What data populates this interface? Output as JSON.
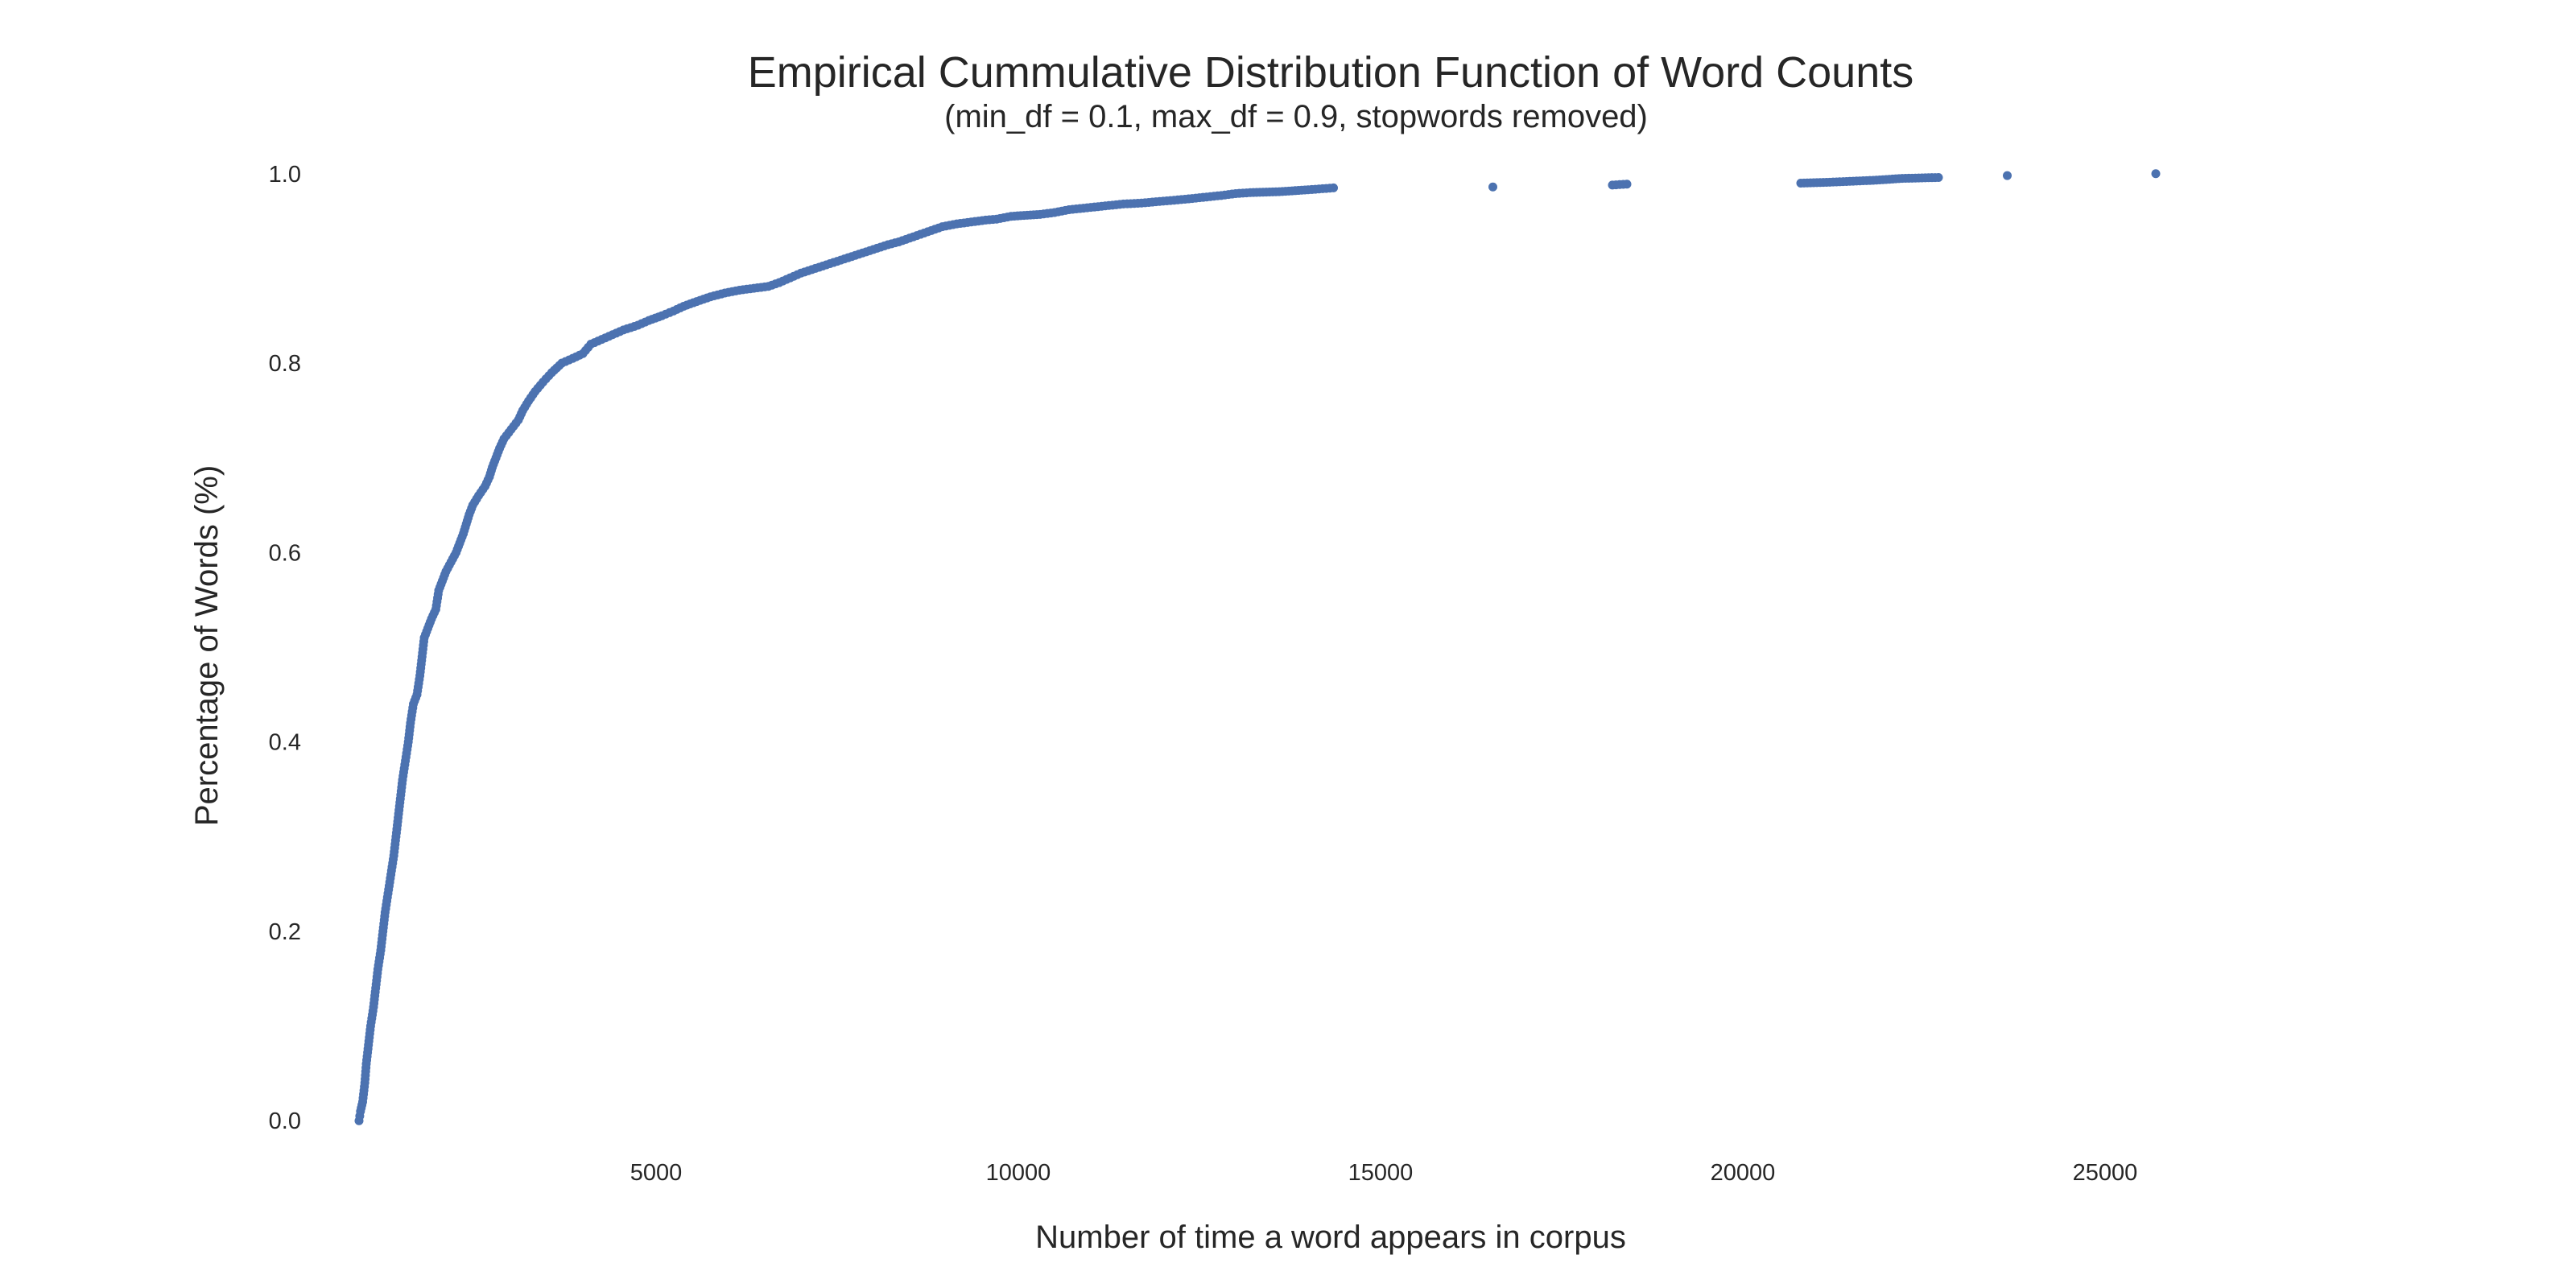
{
  "chart_data": {
    "type": "scatter",
    "title": "Empirical Cummulative Distribution Function of Word Counts",
    "subtitle": "(min_df = 0.1, max_df = 0.9, stopwords removed)",
    "xlabel": "Number of time a word appears in corpus",
    "ylabel": "Percentage of Words (%)",
    "xlim": [
      500,
      28500
    ],
    "ylim": [
      -0.01,
      1.01
    ],
    "x_ticks": [
      5000,
      10000,
      15000,
      20000,
      25000
    ],
    "x_tick_labels": [
      "5000",
      "10000",
      "15000",
      "20000",
      "25000"
    ],
    "y_ticks": [
      0.0,
      0.2,
      0.4,
      0.6,
      0.8,
      1.0
    ],
    "y_tick_labels": [
      "0.0",
      "0.2",
      "0.4",
      "0.6",
      "0.8",
      "1.0"
    ],
    "grid": false,
    "colors": {
      "points": "#4c72b0"
    },
    "series": [
      {
        "points": [
          [
            900,
            0.0
          ],
          [
            920,
            0.01
          ],
          [
            950,
            0.02
          ],
          [
            980,
            0.04
          ],
          [
            1000,
            0.06
          ],
          [
            1030,
            0.08
          ],
          [
            1060,
            0.1
          ],
          [
            1100,
            0.12
          ],
          [
            1130,
            0.14
          ],
          [
            1160,
            0.16
          ],
          [
            1200,
            0.18
          ],
          [
            1230,
            0.2
          ],
          [
            1260,
            0.22
          ],
          [
            1300,
            0.24
          ],
          [
            1340,
            0.26
          ],
          [
            1380,
            0.28
          ],
          [
            1410,
            0.3
          ],
          [
            1440,
            0.32
          ],
          [
            1470,
            0.34
          ],
          [
            1500,
            0.36
          ],
          [
            1540,
            0.38
          ],
          [
            1580,
            0.4
          ],
          [
            1610,
            0.42
          ],
          [
            1650,
            0.44
          ],
          [
            1700,
            0.45
          ],
          [
            1740,
            0.47
          ],
          [
            1770,
            0.49
          ],
          [
            1800,
            0.51
          ],
          [
            1850,
            0.52
          ],
          [
            1900,
            0.53
          ],
          [
            1960,
            0.54
          ],
          [
            2000,
            0.56
          ],
          [
            2050,
            0.57
          ],
          [
            2100,
            0.58
          ],
          [
            2170,
            0.59
          ],
          [
            2240,
            0.6
          ],
          [
            2290,
            0.61
          ],
          [
            2340,
            0.62
          ],
          [
            2380,
            0.63
          ],
          [
            2420,
            0.64
          ],
          [
            2470,
            0.65
          ],
          [
            2550,
            0.66
          ],
          [
            2640,
            0.67
          ],
          [
            2700,
            0.68
          ],
          [
            2740,
            0.69
          ],
          [
            2790,
            0.7
          ],
          [
            2840,
            0.71
          ],
          [
            2900,
            0.72
          ],
          [
            3000,
            0.73
          ],
          [
            3100,
            0.74
          ],
          [
            3160,
            0.75
          ],
          [
            3240,
            0.76
          ],
          [
            3330,
            0.77
          ],
          [
            3440,
            0.78
          ],
          [
            3560,
            0.79
          ],
          [
            3700,
            0.8
          ],
          [
            3850,
            0.805
          ],
          [
            3990,
            0.81
          ],
          [
            4100,
            0.82
          ],
          [
            4250,
            0.825
          ],
          [
            4400,
            0.83
          ],
          [
            4550,
            0.835
          ],
          [
            4750,
            0.84
          ],
          [
            4900,
            0.845
          ],
          [
            5080,
            0.85
          ],
          [
            5240,
            0.855
          ],
          [
            5380,
            0.86
          ],
          [
            5560,
            0.865
          ],
          [
            5750,
            0.87
          ],
          [
            5950,
            0.874
          ],
          [
            6150,
            0.877
          ],
          [
            6350,
            0.879
          ],
          [
            6550,
            0.881
          ],
          [
            6700,
            0.885
          ],
          [
            6850,
            0.89
          ],
          [
            7000,
            0.895
          ],
          [
            7200,
            0.9
          ],
          [
            7400,
            0.905
          ],
          [
            7600,
            0.91
          ],
          [
            7800,
            0.915
          ],
          [
            8000,
            0.92
          ],
          [
            8200,
            0.925
          ],
          [
            8350,
            0.928
          ],
          [
            8500,
            0.932
          ],
          [
            8650,
            0.936
          ],
          [
            8800,
            0.94
          ],
          [
            8950,
            0.944
          ],
          [
            9150,
            0.947
          ],
          [
            9350,
            0.949
          ],
          [
            9550,
            0.951
          ],
          [
            9700,
            0.952
          ],
          [
            9900,
            0.955
          ],
          [
            10300,
            0.957
          ],
          [
            10500,
            0.959
          ],
          [
            10700,
            0.962
          ],
          [
            10950,
            0.964
          ],
          [
            11200,
            0.966
          ],
          [
            11450,
            0.968
          ],
          [
            11700,
            0.969
          ],
          [
            12000,
            0.971
          ],
          [
            12300,
            0.973
          ],
          [
            12550,
            0.975
          ],
          [
            12800,
            0.977
          ],
          [
            13000,
            0.979
          ],
          [
            13200,
            0.98
          ],
          [
            13600,
            0.981
          ],
          [
            14000,
            0.983
          ],
          [
            14350,
            0.985
          ],
          [
            16550,
            0.986
          ],
          [
            18200,
            0.988
          ],
          [
            18400,
            0.989
          ],
          [
            20800,
            0.99
          ],
          [
            21200,
            0.991
          ],
          [
            21800,
            0.993
          ],
          [
            22200,
            0.995
          ],
          [
            22700,
            0.996
          ],
          [
            23650,
            0.998
          ],
          [
            25700,
            1.0
          ]
        ]
      }
    ]
  }
}
